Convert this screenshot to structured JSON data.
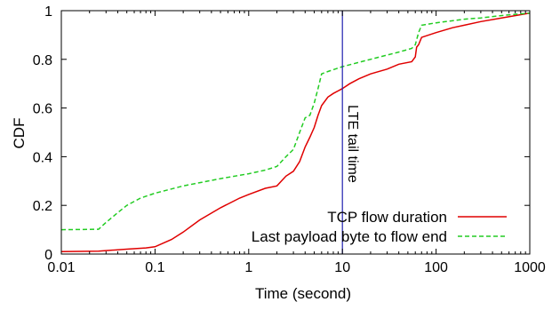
{
  "chart_data": {
    "type": "line",
    "xlabel": "Time (second)",
    "ylabel": "CDF",
    "xscale": "log",
    "xlim": [
      0.01,
      1000
    ],
    "ylim": [
      0,
      1
    ],
    "x_ticks": [
      {
        "value": 0.01,
        "label": "0.01"
      },
      {
        "value": 0.1,
        "label": "0.1"
      },
      {
        "value": 1,
        "label": "1"
      },
      {
        "value": 10,
        "label": "10"
      },
      {
        "value": 100,
        "label": "100"
      },
      {
        "value": 1000,
        "label": "1000"
      }
    ],
    "y_ticks": [
      {
        "value": 0,
        "label": "0"
      },
      {
        "value": 0.2,
        "label": "0.2"
      },
      {
        "value": 0.4,
        "label": "0.4"
      },
      {
        "value": 0.6,
        "label": "0.6"
      },
      {
        "value": 0.8,
        "label": "0.8"
      },
      {
        "value": 1,
        "label": "1"
      }
    ],
    "legend_position": "bottom-right",
    "series": [
      {
        "name": "TCP flow duration",
        "color": "#e00000",
        "dash": "solid",
        "points": [
          [
            0.01,
            0.01
          ],
          [
            0.025,
            0.012
          ],
          [
            0.05,
            0.02
          ],
          [
            0.08,
            0.025
          ],
          [
            0.1,
            0.03
          ],
          [
            0.15,
            0.06
          ],
          [
            0.2,
            0.09
          ],
          [
            0.3,
            0.14
          ],
          [
            0.5,
            0.19
          ],
          [
            0.8,
            0.23
          ],
          [
            1.0,
            0.245
          ],
          [
            1.5,
            0.27
          ],
          [
            2.0,
            0.28
          ],
          [
            2.5,
            0.32
          ],
          [
            3.0,
            0.34
          ],
          [
            3.5,
            0.38
          ],
          [
            4.0,
            0.44
          ],
          [
            4.5,
            0.48
          ],
          [
            5.0,
            0.52
          ],
          [
            5.5,
            0.57
          ],
          [
            6.0,
            0.61
          ],
          [
            7.0,
            0.645
          ],
          [
            8.0,
            0.66
          ],
          [
            10.0,
            0.68
          ],
          [
            12.0,
            0.7
          ],
          [
            15.0,
            0.72
          ],
          [
            20.0,
            0.74
          ],
          [
            30.0,
            0.76
          ],
          [
            40.0,
            0.78
          ],
          [
            55.0,
            0.79
          ],
          [
            60.0,
            0.81
          ],
          [
            62.0,
            0.85
          ],
          [
            65.0,
            0.86
          ],
          [
            70.0,
            0.89
          ],
          [
            100.0,
            0.91
          ],
          [
            150.0,
            0.93
          ],
          [
            200.0,
            0.94
          ],
          [
            300.0,
            0.955
          ],
          [
            500.0,
            0.97
          ],
          [
            1000.0,
            0.99
          ]
        ]
      },
      {
        "name": "Last payload byte to flow end",
        "color": "#22cc22",
        "dash": "dashed",
        "points": [
          [
            0.01,
            0.1
          ],
          [
            0.025,
            0.102
          ],
          [
            0.03,
            0.13
          ],
          [
            0.04,
            0.17
          ],
          [
            0.05,
            0.2
          ],
          [
            0.07,
            0.23
          ],
          [
            0.1,
            0.25
          ],
          [
            0.2,
            0.28
          ],
          [
            0.5,
            0.31
          ],
          [
            1.0,
            0.33
          ],
          [
            1.5,
            0.345
          ],
          [
            2.0,
            0.36
          ],
          [
            2.5,
            0.4
          ],
          [
            3.0,
            0.43
          ],
          [
            3.5,
            0.5
          ],
          [
            4.0,
            0.56
          ],
          [
            4.5,
            0.57
          ],
          [
            5.0,
            0.62
          ],
          [
            5.5,
            0.68
          ],
          [
            6.0,
            0.74
          ],
          [
            7.0,
            0.75
          ],
          [
            10.0,
            0.77
          ],
          [
            20.0,
            0.8
          ],
          [
            40.0,
            0.83
          ],
          [
            55.0,
            0.845
          ],
          [
            60.0,
            0.86
          ],
          [
            62.0,
            0.88
          ],
          [
            65.0,
            0.91
          ],
          [
            70.0,
            0.94
          ],
          [
            100.0,
            0.95
          ],
          [
            200.0,
            0.965
          ],
          [
            300.0,
            0.97
          ],
          [
            500.0,
            0.98
          ],
          [
            1000.0,
            0.99
          ]
        ]
      }
    ],
    "annotations": [
      {
        "type": "vline",
        "x": 10,
        "color": "#2020b0",
        "label": "LTE tail time"
      }
    ]
  }
}
